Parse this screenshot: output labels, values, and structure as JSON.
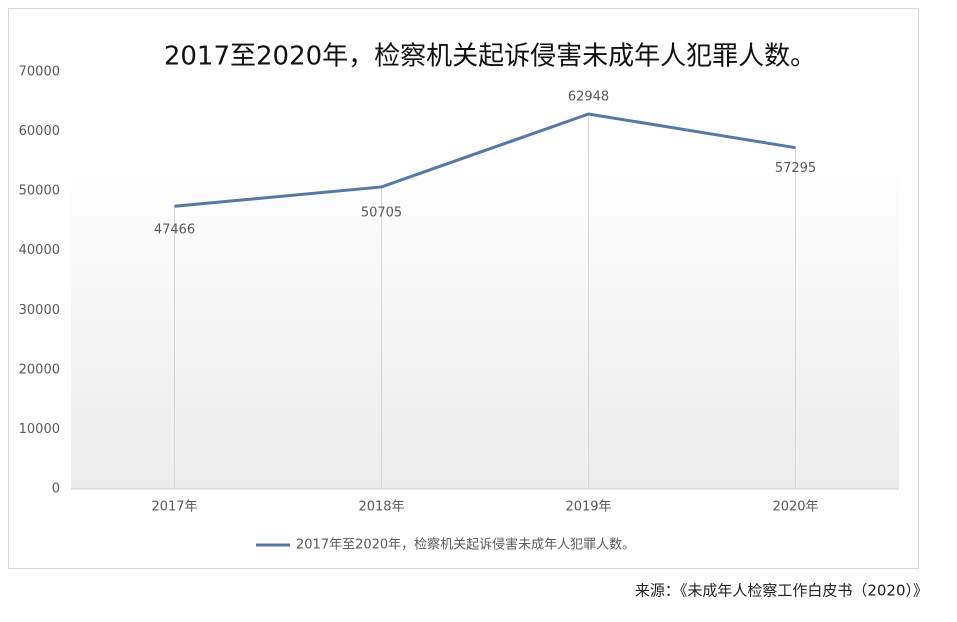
{
  "chart_data": {
    "type": "line",
    "title": "2017至2020年，检察机关起诉侵害未成年人犯罪人数。",
    "categories": [
      "2017年",
      "2018年",
      "2019年",
      "2020年"
    ],
    "series": [
      {
        "name": "2017年至2020年，检察机关起诉侵害未成年人犯罪人数。",
        "color": "#5578a5",
        "values": [
          47466,
          50705,
          62948,
          57295
        ]
      }
    ],
    "ylim": [
      0,
      70000
    ],
    "yticks": [
      0,
      10000,
      20000,
      30000,
      40000,
      50000,
      60000,
      70000
    ],
    "grid": false,
    "legend": "bottom",
    "source": "来源：《未成年人检察工作白皮书（2020）》"
  }
}
